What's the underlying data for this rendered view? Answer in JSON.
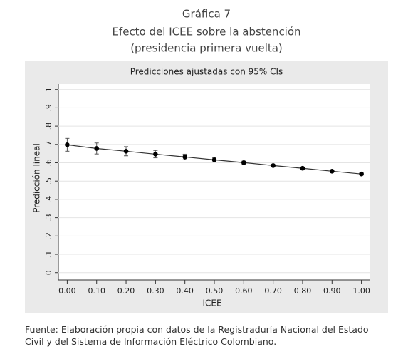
{
  "chart_data": {
    "type": "line",
    "title": "Gráfica 7",
    "subtitle": [
      "Efecto del ICEE sobre la abstención",
      "(presidencia primera vuelta)"
    ],
    "panel_title": "Predicciones ajustadas con 95% CIs",
    "x_label": "ICEE",
    "y_label": "Predicción lineal",
    "x": [
      0,
      0.1,
      0.2,
      0.3,
      0.4,
      0.5,
      0.6,
      0.7,
      0.8,
      0.9,
      1
    ],
    "values": [
      0.698,
      0.678,
      0.663,
      0.647,
      0.632,
      0.616,
      0.601,
      0.585,
      0.57,
      0.554,
      0.539
    ],
    "errors": [
      0.035,
      0.03,
      0.025,
      0.02,
      0.015,
      0.012,
      0.008,
      0.005,
      0.004,
      0.005,
      0.006
    ],
    "color": "#000000",
    "xlim": [
      -0.03,
      1.03
    ],
    "xticks": [
      {
        "value": 0,
        "label": "0.00"
      },
      {
        "value": 0.1,
        "label": "0.10"
      },
      {
        "value": 0.2,
        "label": "0.20"
      },
      {
        "value": 0.3,
        "label": "0.30"
      },
      {
        "value": 0.4,
        "label": "0.40"
      },
      {
        "value": 0.5,
        "label": "0.50"
      },
      {
        "value": 0.6,
        "label": "0.60"
      },
      {
        "value": 0.7,
        "label": "0.70"
      },
      {
        "value": 0.8,
        "label": "0.80"
      },
      {
        "value": 0.9,
        "label": "0.90"
      },
      {
        "value": 1,
        "label": "1.00"
      }
    ],
    "ylim": [
      -0.04,
      1.03
    ],
    "yticks": [
      0,
      {
        "value": 0.1,
        "label": ".1"
      },
      {
        "value": 0.2,
        "label": ".2"
      },
      {
        "value": 0.3,
        "label": ".3"
      },
      {
        "value": 0.4,
        "label": ".4"
      },
      {
        "value": 0.5,
        "label": ".5"
      },
      {
        "value": 0.6,
        "label": ".6"
      },
      {
        "value": 0.7,
        "label": ".7"
      },
      {
        "value": 0.8,
        "label": ".8"
      },
      {
        "value": 0.9,
        "label": ".9"
      },
      1
    ],
    "grid": true,
    "source": "Fuente: Elaboración propia con datos de la Registraduría Nacional del Estado Civil y del Sistema de Información Eléctrico Colombiano."
  }
}
